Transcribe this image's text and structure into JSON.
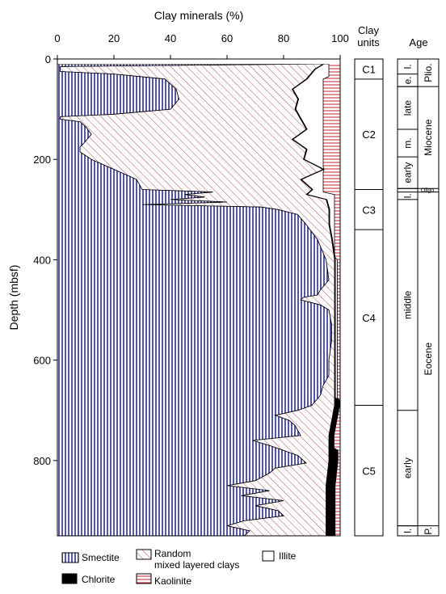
{
  "chart_data": {
    "type": "area",
    "orientation": "stacked cumulative percent vs depth",
    "title": "",
    "xlabel": "Clay minerals (%)",
    "ylabel": "Depth (mbsf)",
    "xlim": [
      0,
      100
    ],
    "ylim": [
      950,
      0
    ],
    "x_ticks": [
      "0",
      "20",
      "40",
      "60",
      "80",
      "100"
    ],
    "y_ticks": [
      "0",
      "200",
      "400",
      "600",
      "800"
    ],
    "grid": false,
    "legend_position": "bottom",
    "series": [
      {
        "name": "Smectite",
        "color": "#2b2b99",
        "pattern": "vertical lines",
        "cumulative_upper_boundary": [
          [
            10,
            90
          ],
          [
            15,
            1
          ],
          [
            25,
            1
          ],
          [
            30,
            20
          ],
          [
            40,
            38
          ],
          [
            60,
            42
          ],
          [
            80,
            43
          ],
          [
            100,
            40
          ],
          [
            110,
            20
          ],
          [
            115,
            1
          ],
          [
            120,
            1
          ],
          [
            125,
            8
          ],
          [
            135,
            10
          ],
          [
            150,
            12
          ],
          [
            170,
            9
          ],
          [
            175,
            8
          ],
          [
            185,
            8
          ],
          [
            200,
            12
          ],
          [
            220,
            20
          ],
          [
            240,
            28
          ],
          [
            260,
            30
          ],
          [
            265,
            55
          ],
          [
            270,
            45
          ],
          [
            275,
            52
          ],
          [
            280,
            40
          ],
          [
            285,
            60
          ],
          [
            290,
            30
          ],
          [
            295,
            72
          ],
          [
            300,
            78
          ],
          [
            310,
            85
          ],
          [
            330,
            88
          ],
          [
            360,
            92
          ],
          [
            400,
            95
          ],
          [
            440,
            96
          ],
          [
            460,
            93
          ],
          [
            470,
            92
          ],
          [
            475,
            87
          ],
          [
            480,
            86
          ],
          [
            490,
            93
          ],
          [
            500,
            96
          ],
          [
            530,
            97
          ],
          [
            560,
            97
          ],
          [
            600,
            96
          ],
          [
            630,
            96
          ],
          [
            650,
            94
          ],
          [
            670,
            93
          ],
          [
            690,
            90
          ],
          [
            700,
            85
          ],
          [
            710,
            77
          ],
          [
            720,
            82
          ],
          [
            730,
            84
          ],
          [
            750,
            86
          ],
          [
            760,
            69
          ],
          [
            770,
            75
          ],
          [
            790,
            85
          ],
          [
            805,
            88
          ],
          [
            815,
            77
          ],
          [
            825,
            75
          ],
          [
            840,
            70
          ],
          [
            850,
            60
          ],
          [
            860,
            75
          ],
          [
            870,
            65
          ],
          [
            880,
            80
          ],
          [
            890,
            70
          ],
          [
            900,
            78
          ],
          [
            910,
            80
          ],
          [
            920,
            66
          ],
          [
            930,
            60
          ],
          [
            940,
            68
          ],
          [
            950,
            66
          ]
        ]
      },
      {
        "name": "Random mixed layered clays",
        "color": "#cc3344",
        "pattern": "diagonal lines",
        "cumulative_upper_boundary": [
          [
            10,
            94
          ],
          [
            20,
            91
          ],
          [
            40,
            88
          ],
          [
            60,
            83
          ],
          [
            80,
            85
          ],
          [
            100,
            84
          ],
          [
            120,
            86
          ],
          [
            140,
            88
          ],
          [
            160,
            83
          ],
          [
            180,
            88
          ],
          [
            200,
            87
          ],
          [
            220,
            94
          ],
          [
            240,
            86
          ],
          [
            260,
            90
          ],
          [
            270,
            88
          ],
          [
            280,
            95
          ],
          [
            300,
            96
          ],
          [
            330,
            96
          ],
          [
            360,
            97
          ],
          [
            400,
            98
          ],
          [
            460,
            98
          ],
          [
            500,
            98
          ],
          [
            560,
            98
          ],
          [
            600,
            98
          ],
          [
            690,
            98
          ],
          [
            750,
            96
          ],
          [
            800,
            96
          ],
          [
            850,
            95
          ],
          [
            900,
            95
          ],
          [
            950,
            95
          ]
        ]
      },
      {
        "name": "Chlorite",
        "color": "#000000",
        "pattern": "solid",
        "description_values": "thin band above Illite, thicker below ~680 mbsf"
      },
      {
        "name": "Illite",
        "color": "#ffffff",
        "pattern": "blank"
      },
      {
        "name": "Kaolinite",
        "color": "#cc3344",
        "pattern": "horizontal lines"
      }
    ],
    "clay_units": {
      "header": [
        "Clay",
        "units"
      ],
      "units": [
        {
          "label": "C1",
          "top": 0,
          "bottom": 40
        },
        {
          "label": "C2",
          "top": 40,
          "bottom": 260
        },
        {
          "label": "C3",
          "top": 260,
          "bottom": 340
        },
        {
          "label": "C4",
          "top": 340,
          "bottom": 690
        },
        {
          "label": "C5",
          "top": 690,
          "bottom": 950
        }
      ]
    },
    "age": {
      "header": "Age",
      "epochs": [
        {
          "label": "Plio.",
          "top": 0,
          "bottom": 55
        },
        {
          "label": "Miocene",
          "top": 55,
          "bottom": 258
        },
        {
          "label": "Oligo.",
          "top": 258,
          "bottom": 265
        },
        {
          "label": "Eocene",
          "top": 265,
          "bottom": 930
        },
        {
          "label": "P.",
          "top": 930,
          "bottom": 950
        }
      ],
      "subdivisions": [
        {
          "label": "l.",
          "top": 0,
          "bottom": 30
        },
        {
          "label": "e.",
          "top": 30,
          "bottom": 55
        },
        {
          "label": "late",
          "top": 55,
          "bottom": 140
        },
        {
          "label": "m.",
          "top": 140,
          "bottom": 195
        },
        {
          "label": "early",
          "top": 195,
          "bottom": 258
        },
        {
          "label": "l.",
          "top": 265,
          "bottom": 280
        },
        {
          "label": "middle",
          "top": 280,
          "bottom": 700
        },
        {
          "label": "early",
          "top": 700,
          "bottom": 930
        },
        {
          "label": "l.",
          "top": 930,
          "bottom": 950
        }
      ]
    },
    "legend": [
      {
        "label": "Smectite",
        "pattern": "vertical-blue"
      },
      {
        "label": "Random",
        "label2": "mixed layered clays",
        "pattern": "diagonal-red"
      },
      {
        "label": "Illite",
        "pattern": "blank"
      },
      {
        "label": "Chlorite",
        "pattern": "solid-black"
      },
      {
        "label": "Kaolinite",
        "pattern": "horizontal-red"
      }
    ]
  }
}
